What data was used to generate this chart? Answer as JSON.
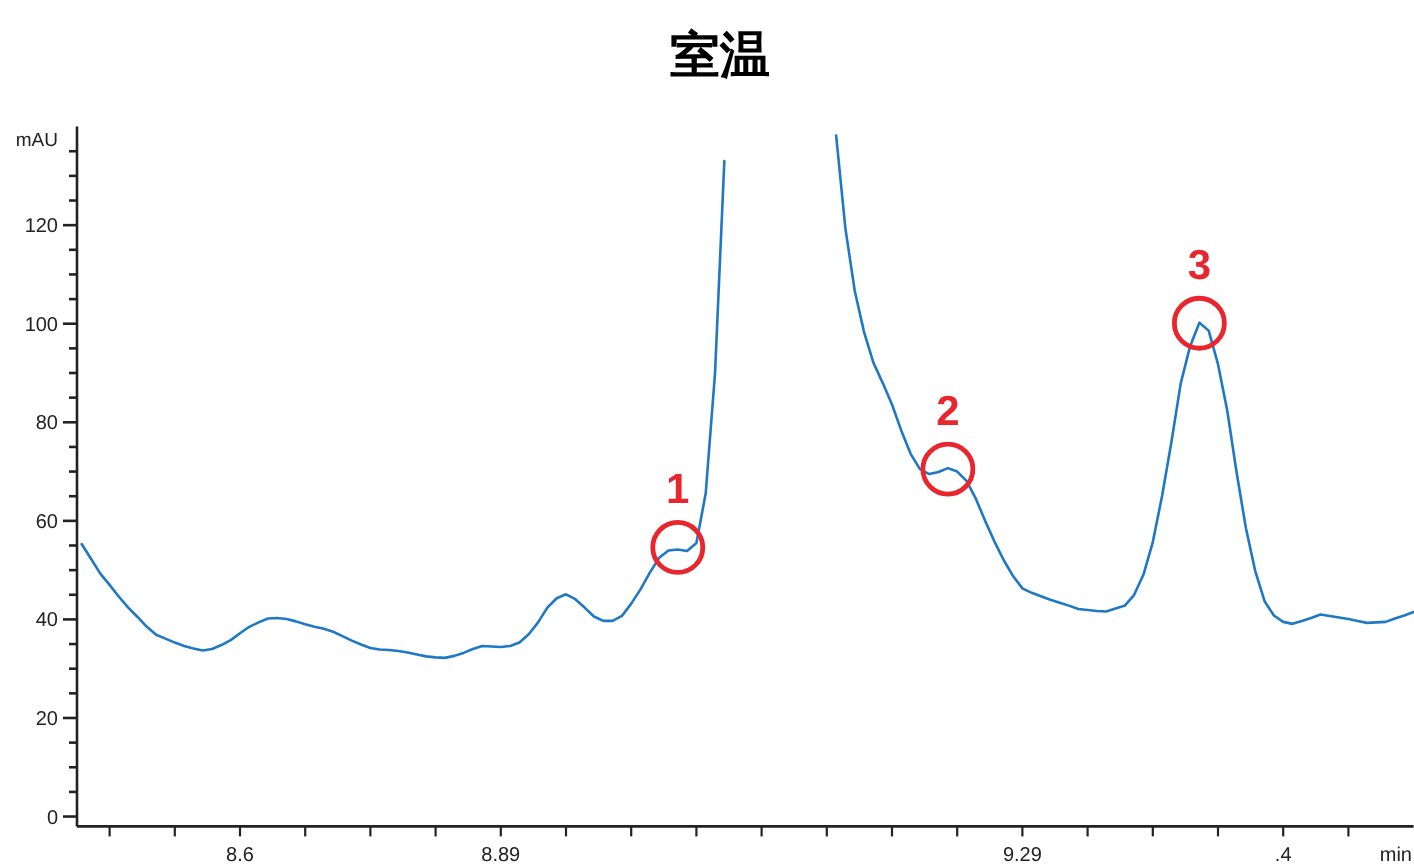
{
  "chart_data": {
    "type": "line",
    "title": "室温",
    "xlabel": "min",
    "ylabel": "mAU",
    "color": "#1f78c4",
    "ylim": [
      -2,
      140
    ],
    "yticks": [
      0,
      {
        "value": 5,
        "label": null
      },
      {
        "value": 10,
        "label": null
      },
      {
        "value": 15,
        "label": null
      },
      20,
      {
        "value": 25,
        "label": null
      },
      {
        "value": 30,
        "label": null
      },
      {
        "value": 35,
        "label": null
      },
      40,
      {
        "value": 45,
        "label": null
      },
      {
        "value": 50,
        "label": null
      },
      {
        "value": 55,
        "label": null
      },
      60,
      {
        "value": 65,
        "label": null
      },
      {
        "value": 70,
        "label": null
      },
      {
        "value": 75,
        "label": null
      },
      80,
      {
        "value": 85,
        "label": null
      },
      {
        "value": 90,
        "label": null
      },
      {
        "value": 95,
        "label": null
      },
      100,
      {
        "value": 105,
        "label": null
      },
      {
        "value": 110,
        "label": null
      },
      {
        "value": 115,
        "label": null
      },
      120,
      {
        "value": 125,
        "label": null
      },
      {
        "value": 130,
        "label": null
      },
      {
        "value": 135,
        "label": null
      }
    ],
    "categories": [
      null,
      null,
      null,
      null,
      null,
      null,
      null,
      null,
      null,
      null,
      null,
      null,
      null,
      null,
      null,
      null,
      null,
      "8.6",
      null,
      null,
      null,
      null,
      null,
      null,
      null,
      null,
      null,
      null,
      null,
      null,
      null,
      null,
      null,
      null,
      null,
      null,
      null,
      null,
      null,
      null,
      null,
      null,
      null,
      null,
      null,
      "8.89",
      null,
      null,
      null,
      null,
      null,
      null,
      null,
      null,
      null,
      null,
      null,
      null,
      null,
      null,
      null,
      null,
      null,
      null,
      null,
      null,
      null,
      null,
      null,
      null,
      null,
      null,
      null,
      null,
      null,
      null,
      null,
      null,
      null,
      null,
      null,
      null,
      null,
      null,
      null,
      null,
      null,
      null,
      null,
      null,
      null,
      null,
      null,
      null,
      null,
      null,
      null,
      null,
      null,
      null,
      null,
      "9.29",
      null,
      null,
      null,
      null,
      null,
      null,
      null,
      null,
      null,
      null,
      null,
      null,
      null,
      null,
      null,
      null,
      null,
      null,
      null,
      null,
      null,
      null,
      null,
      null,
      null,
      null,
      null,
      ".4",
      null,
      null,
      null,
      null,
      null,
      null,
      null,
      null,
      null,
      null,
      null,
      null,
      null,
      null
    ],
    "values": [
      55.3,
      52.3,
      49.3,
      47.0,
      44.6,
      42.4,
      40.5,
      38.5,
      36.9,
      36.1,
      35.3,
      34.6,
      34.1,
      33.7,
      34.0,
      34.8,
      35.8,
      37.2,
      38.5,
      39.4,
      40.2,
      40.3,
      40.1,
      39.6,
      39.0,
      38.5,
      38.1,
      37.5,
      36.6,
      35.7,
      34.9,
      34.2,
      33.9,
      33.8,
      33.6,
      33.3,
      32.9,
      32.5,
      32.3,
      32.2,
      32.6,
      33.2,
      34.0,
      34.6,
      34.5,
      34.4,
      34.6,
      35.3,
      37.0,
      39.4,
      42.4,
      44.3,
      45.1,
      44.1,
      42.4,
      40.6,
      39.7,
      39.7,
      40.7,
      43.2,
      46.1,
      49.5,
      52.5,
      54.0,
      54.2,
      53.9,
      55.5,
      65.6,
      90.0,
      133,
      null,
      null,
      null,
      null,
      null,
      null,
      null,
      null,
      null,
      null,
      null,
      138.2,
      119.3,
      106.7,
      98.3,
      92.1,
      88.0,
      83.6,
      78.3,
      73.6,
      70.5,
      69.5,
      69.9,
      70.7,
      70.0,
      68.1,
      64.5,
      60.0,
      55.8,
      52.0,
      48.8,
      46.3,
      45.4,
      44.7,
      44.0,
      43.4,
      42.8,
      42.1,
      41.9,
      41.7,
      41.6,
      42.2,
      42.8,
      45.0,
      49.1,
      55.7,
      65.1,
      76.0,
      87.9,
      95.4,
      100.2,
      98.6,
      91.8,
      82.3,
      69.8,
      58.5,
      49.8,
      43.7,
      40.8,
      39.5,
      39.1,
      39.7,
      40.3,
      41.0,
      40.7,
      40.4,
      40.1,
      39.7,
      39.3,
      39.4,
      39.5,
      40.2,
      40.8,
      41.5
    ],
    "annotations": [
      {
        "text": "1",
        "y": 54.6
      },
      {
        "text": "2",
        "y": 70.5
      },
      {
        "text": "3",
        "y": 100.1
      }
    ]
  }
}
